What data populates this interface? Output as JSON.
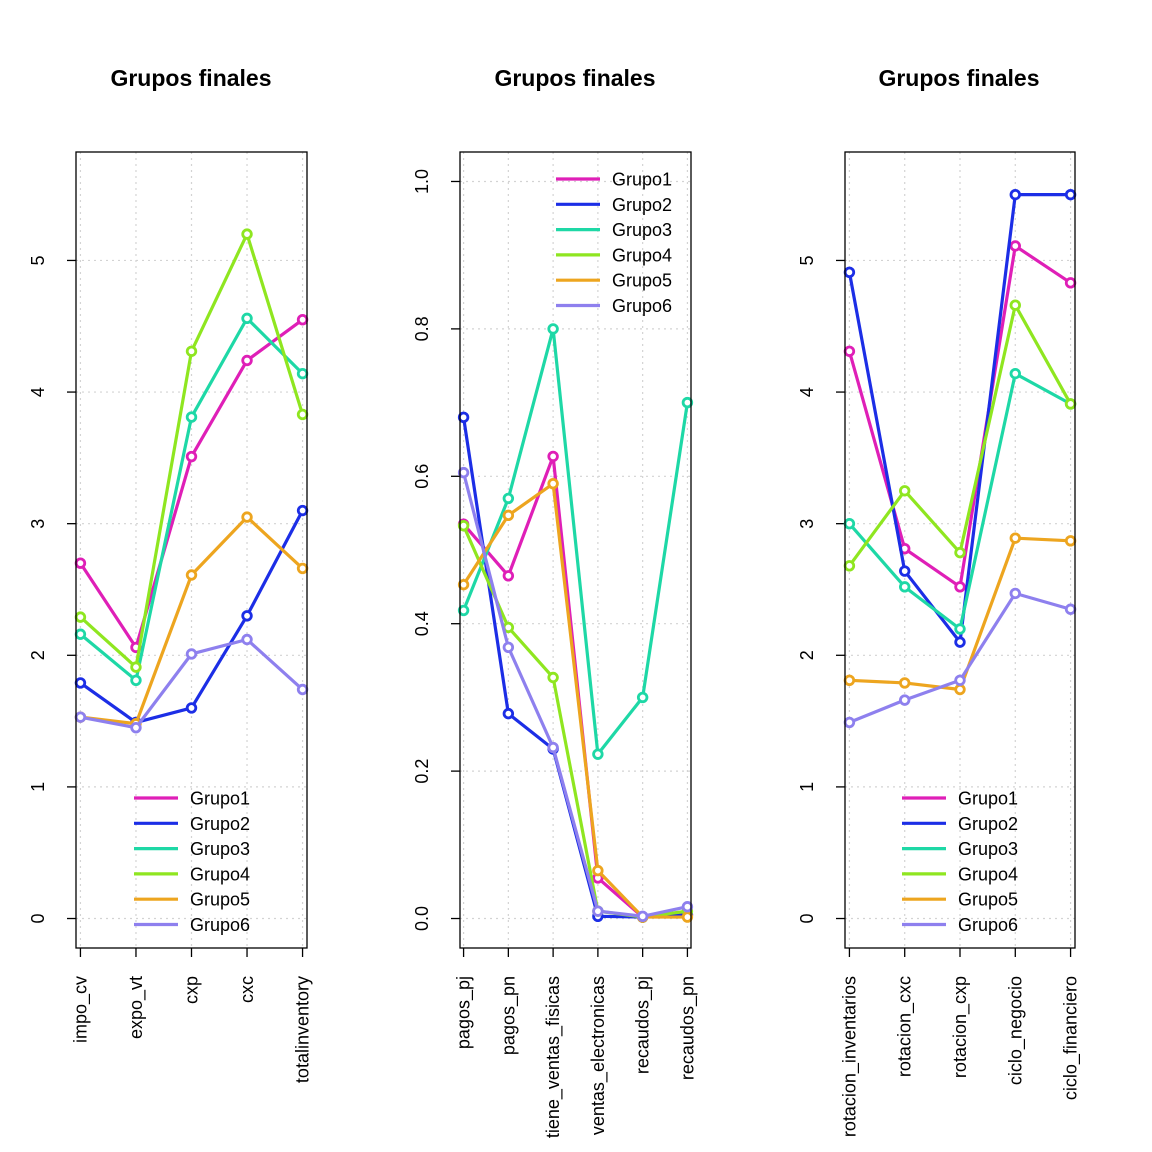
{
  "series_colors": {
    "Grupo1": "#DF1FB7",
    "Grupo2": "#1C2EE6",
    "Grupo3": "#1ED8A6",
    "Grupo4": "#8FE620",
    "Grupo5": "#EDA51F",
    "Grupo6": "#8E80EE"
  },
  "chart_data": [
    {
      "type": "line",
      "title": "Grupos finales",
      "categories": [
        "impo_cv",
        "expo_vt",
        "cxp",
        "cxc",
        "totalinventory"
      ],
      "ylim": [
        0,
        5.6
      ],
      "yticks": [
        "0",
        "1",
        "2",
        "3",
        "4",
        "5"
      ],
      "grid": true,
      "legend": "bottom-right",
      "series": [
        {
          "name": "Grupo1",
          "values": [
            2.7,
            2.06,
            3.51,
            4.24,
            4.55
          ]
        },
        {
          "name": "Grupo2",
          "values": [
            1.79,
            1.49,
            1.6,
            2.3,
            3.1
          ]
        },
        {
          "name": "Grupo3",
          "values": [
            2.16,
            1.81,
            3.81,
            4.56,
            4.14
          ]
        },
        {
          "name": "Grupo4",
          "values": [
            2.29,
            1.91,
            4.31,
            5.2,
            3.83
          ]
        },
        {
          "name": "Grupo5",
          "values": [
            1.53,
            1.48,
            2.61,
            3.05,
            2.66
          ]
        },
        {
          "name": "Grupo6",
          "values": [
            1.53,
            1.45,
            2.01,
            2.12,
            1.74
          ]
        }
      ]
    },
    {
      "type": "line",
      "title": "Grupos finales",
      "categories": [
        "pagos_pj",
        "pagos_pn",
        "tiene_ventas_fisicas",
        "ventas_electronicas",
        "recaudos_pj",
        "recaudos_pn"
      ],
      "ylim": [
        0,
        1.0
      ],
      "yticks": [
        "0.0",
        "0.2",
        "0.4",
        "0.6",
        "0.8",
        "1.0"
      ],
      "grid": true,
      "legend": "top-right",
      "series": [
        {
          "name": "Grupo1",
          "values": [
            0.535,
            0.465,
            0.627,
            0.055,
            0.002,
            0.005
          ]
        },
        {
          "name": "Grupo2",
          "values": [
            0.68,
            0.278,
            0.23,
            0.003,
            0.002,
            0.005
          ]
        },
        {
          "name": "Grupo3",
          "values": [
            0.418,
            0.57,
            0.8,
            0.223,
            0.3,
            0.7
          ]
        },
        {
          "name": "Grupo4",
          "values": [
            0.533,
            0.395,
            0.327,
            0.01,
            0.002,
            0.01
          ]
        },
        {
          "name": "Grupo5",
          "values": [
            0.453,
            0.547,
            0.59,
            0.065,
            0.002,
            0.002
          ]
        },
        {
          "name": "Grupo6",
          "values": [
            0.605,
            0.368,
            0.232,
            0.01,
            0.003,
            0.016
          ]
        }
      ]
    },
    {
      "type": "line",
      "title": "Grupos finales",
      "categories": [
        "rotacion_inventarios",
        "rotacion_cxc",
        "rotacion_cxp",
        "ciclo_negocio",
        "ciclo_financiero"
      ],
      "ylim": [
        0,
        5.6
      ],
      "yticks": [
        "0",
        "1",
        "2",
        "3",
        "4",
        "5"
      ],
      "grid": true,
      "legend": "bottom-right",
      "series": [
        {
          "name": "Grupo1",
          "values": [
            4.31,
            2.81,
            2.52,
            5.11,
            4.83
          ]
        },
        {
          "name": "Grupo2",
          "values": [
            4.91,
            2.64,
            2.1,
            5.5,
            5.5
          ]
        },
        {
          "name": "Grupo3",
          "values": [
            3.0,
            2.52,
            2.2,
            4.14,
            3.91
          ]
        },
        {
          "name": "Grupo4",
          "values": [
            2.68,
            3.25,
            2.78,
            4.66,
            3.91
          ]
        },
        {
          "name": "Grupo5",
          "values": [
            1.81,
            1.79,
            1.74,
            2.89,
            2.87
          ]
        },
        {
          "name": "Grupo6",
          "values": [
            1.49,
            1.66,
            1.81,
            2.47,
            2.35
          ]
        }
      ]
    }
  ]
}
